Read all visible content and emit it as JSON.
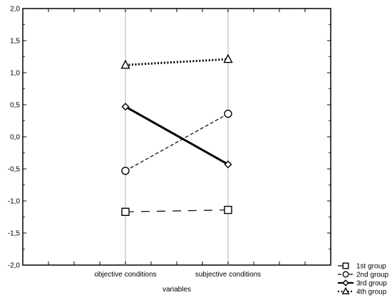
{
  "chart_data": {
    "type": "line",
    "xlabel": "variables",
    "ylabel": "",
    "title": "",
    "categories": [
      "objective conditions",
      "subjective conditions"
    ],
    "ylim": [
      -2.0,
      2.0
    ],
    "y_ticks": [
      "2,0",
      "1,5",
      "1,0",
      "0,5",
      "0,0",
      "-0,5",
      "-1,0",
      "-1,5",
      "-2,0"
    ],
    "grid": "vertical at categories",
    "legend_position": "bottom-right, outside plot",
    "series": [
      {
        "name": "1st group",
        "values": [
          -1.17,
          -1.14
        ],
        "line_style": "long-dash",
        "marker": "square",
        "color": "#000000"
      },
      {
        "name": "2nd group",
        "values": [
          -0.53,
          0.36
        ],
        "line_style": "dashed",
        "marker": "circle",
        "color": "#000000"
      },
      {
        "name": "3rd group",
        "values": [
          0.47,
          -0.43
        ],
        "line_style": "solid-thick",
        "marker": "diamond",
        "color": "#000000"
      },
      {
        "name": "4th group",
        "values": [
          1.12,
          1.21
        ],
        "line_style": "dotted",
        "marker": "triangle",
        "color": "#000000"
      }
    ]
  }
}
